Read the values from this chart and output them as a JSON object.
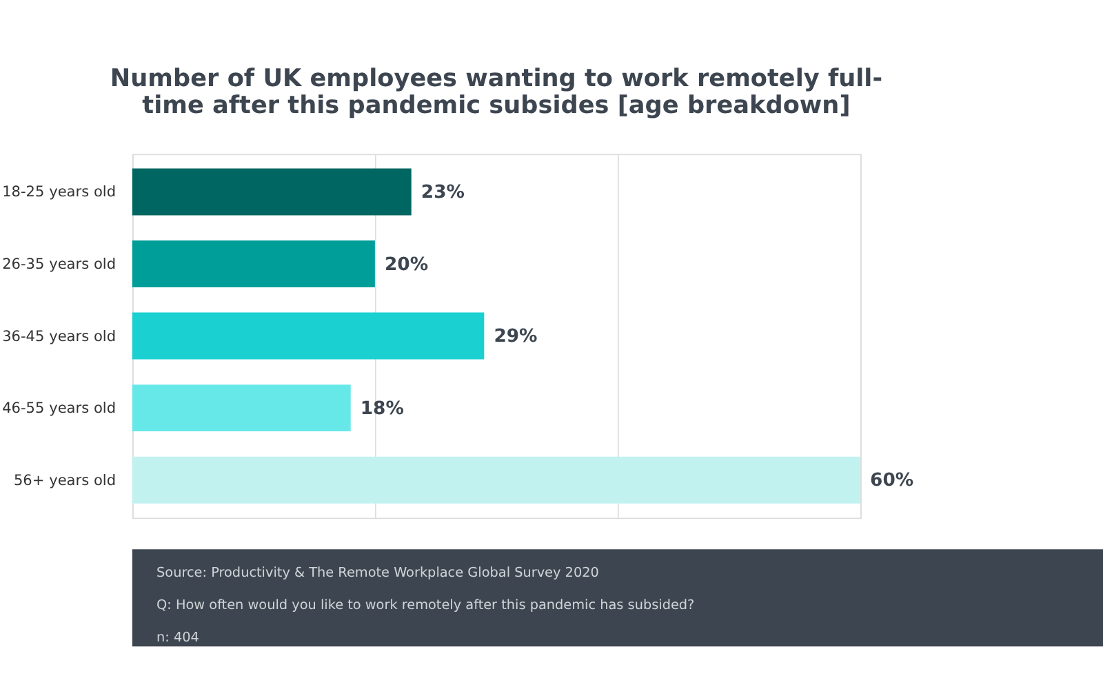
{
  "chart_data": {
    "type": "bar",
    "orientation": "horizontal",
    "title": [
      "Number of UK employees wanting to work remotely full-",
      "time after this pandemic subsides [age breakdown]"
    ],
    "categories": [
      "18-25 years old",
      "26-35 years old",
      "36-45 years old",
      "46-55 years old",
      "56+ years old"
    ],
    "values": [
      23,
      20,
      29,
      18,
      60
    ],
    "value_labels": [
      "23%",
      "20%",
      "29%",
      "18%",
      "60%"
    ],
    "colors": [
      "#006661",
      "#009e99",
      "#1ad0d0",
      "#66e8e8",
      "#c2f2f0"
    ],
    "xlim": [
      0,
      60
    ],
    "xticks": [
      {
        "value": 0,
        "label": null
      },
      {
        "value": 20,
        "label": null
      },
      {
        "value": 40,
        "label": null
      },
      {
        "value": 60,
        "label": null
      }
    ],
    "grid": "x",
    "tick_labels": "y",
    "annotations": [
      "Source: Productivity & The Remote Workplace Global Survey 2020",
      "Q: How often would you like to work remotely after this pandemic has subsided?",
      "n: 404"
    ]
  }
}
